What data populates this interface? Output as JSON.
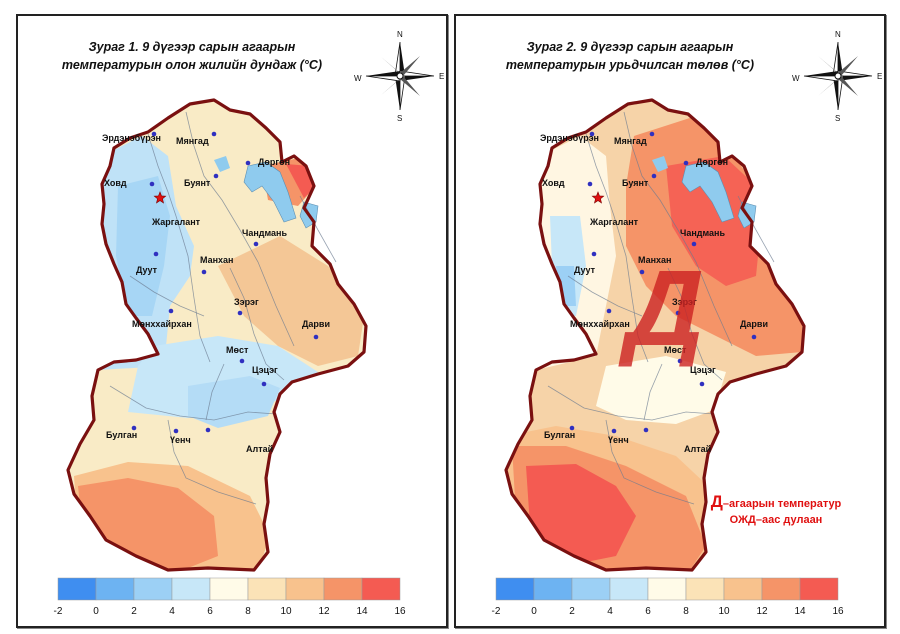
{
  "panels": [
    {
      "title_line1": "Зураг 1.  9 дүгээр сарын агаарын",
      "title_line2": "температурын олон жилийн дундаж (°C)",
      "fill": "#f9ebc6",
      "accent": "#f4c796"
    },
    {
      "title_line1": "Зураг 2. 9 дүгээр сарын агаарын",
      "title_line2": "температурын урьдчилсан төлөв (°C)",
      "fill": "#f6d3a8",
      "accent": "#ef8a62",
      "big_letter": "Д",
      "legend_letter": "Д",
      "legend_line1": "–агаарын температур",
      "legend_line2": "ОЖД–аас дулаан"
    }
  ],
  "compass": {
    "n": "N",
    "s": "S",
    "e": "E",
    "w": "W"
  },
  "places": [
    {
      "name": "Эрдэнэбүрэн"
    },
    {
      "name": "Мянгад"
    },
    {
      "name": "Ховд"
    },
    {
      "name": "Буянт"
    },
    {
      "name": "Дөргөн"
    },
    {
      "name": "Жаргалант"
    },
    {
      "name": "Чандмань"
    },
    {
      "name": "Дуут"
    },
    {
      "name": "Манхан"
    },
    {
      "name": "Зэрэг"
    },
    {
      "name": "Мөнххайрхан"
    },
    {
      "name": "Дарви"
    },
    {
      "name": "Мөст"
    },
    {
      "name": "Цэцэг"
    },
    {
      "name": "Булган"
    },
    {
      "name": "Үенч"
    },
    {
      "name": "Алтай"
    }
  ],
  "colorbar": {
    "ticks": [
      "-2",
      "0",
      "2",
      "4",
      "6",
      "8",
      "10",
      "12",
      "14",
      "16"
    ],
    "colors": [
      "#3f8ef0",
      "#6db3f2",
      "#9cd0f5",
      "#c7e7f8",
      "#fffbe8",
      "#fbe3b7",
      "#f8c28d",
      "#f59468",
      "#f45b52"
    ]
  },
  "colors": {
    "water": "#8fcbee",
    "border": "#7a1010",
    "dot": "#3030c0",
    "star": "#e01010"
  }
}
